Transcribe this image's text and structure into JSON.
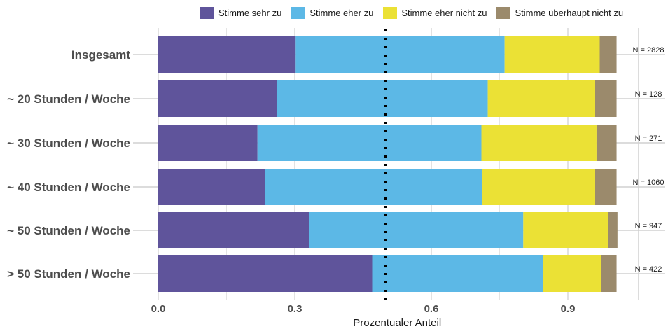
{
  "chart_data": {
    "type": "bar",
    "orientation": "horizontal",
    "stacked": true,
    "xlabel": "Prozentualer Anteil",
    "xlim": [
      0,
      1.05
    ],
    "xticks": [
      "0.0",
      "0.3",
      "0.6",
      "0.9"
    ],
    "xtick_values": [
      0,
      0.3,
      0.6,
      0.9
    ],
    "reference_line": 0.5,
    "grid": true,
    "legend_position": "top",
    "categories": [
      "Insgesamt",
      "~ 20 Stunden / Woche",
      "~ 30 Stunden / Woche",
      "~ 40 Stunden / Woche",
      "~ 50 Stunden / Woche",
      "> 50 Stunden / Woche"
    ],
    "n_labels": [
      "N = 2828",
      "N = 128",
      "N = 271",
      "N = 1060",
      "N = 947",
      "N = 422"
    ],
    "series": [
      {
        "name": "Stimme sehr zu",
        "color": "#5f549b",
        "values": [
          0.302,
          0.26,
          0.218,
          0.234,
          0.332,
          0.47
        ]
      },
      {
        "name": "Stimme eher zu",
        "color": "#5cb8e6",
        "values": [
          0.459,
          0.464,
          0.492,
          0.477,
          0.47,
          0.375
        ]
      },
      {
        "name": "Stimme eher nicht zu",
        "color": "#ebe135",
        "values": [
          0.209,
          0.236,
          0.253,
          0.249,
          0.186,
          0.128
        ]
      },
      {
        "name": "Stimme überhaupt nicht zu",
        "color": "#9b8a6c",
        "values": [
          0.037,
          0.047,
          0.044,
          0.047,
          0.021,
          0.034
        ]
      }
    ]
  }
}
